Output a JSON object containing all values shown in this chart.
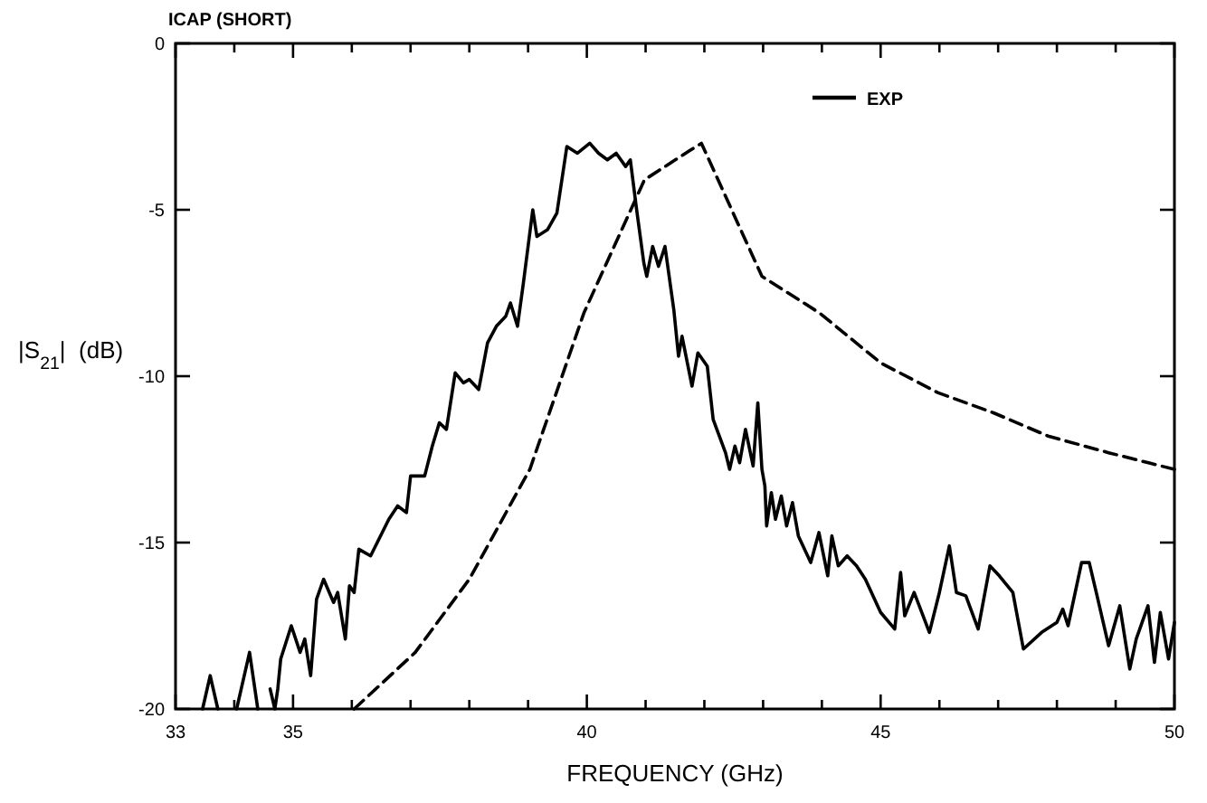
{
  "chart_data": {
    "type": "line",
    "title": "ICAP (SHORT)",
    "xlabel": "FREQUENCY (GHz)",
    "ylabel": "|S$_{21}$|  (dB)",
    "xlim": [
      33,
      50
    ],
    "ylim": [
      -20,
      0
    ],
    "xticks": [
      33,
      {
        "value": 34,
        "label": null
      },
      35,
      {
        "value": 36,
        "label": null
      },
      {
        "value": 37,
        "label": null
      },
      {
        "value": 38,
        "label": null
      },
      {
        "value": 39,
        "label": null
      },
      40,
      {
        "value": 41,
        "label": null
      },
      {
        "value": 42,
        "label": null
      },
      {
        "value": 43,
        "label": null
      },
      {
        "value": 44,
        "label": null
      },
      45,
      {
        "value": 46,
        "label": null
      },
      {
        "value": 47,
        "label": null
      },
      {
        "value": 48,
        "label": null
      },
      {
        "value": 49,
        "label": null
      },
      50
    ],
    "yticks": [
      0,
      -5,
      -10,
      -15,
      -20
    ],
    "grid": false,
    "legend": "top right",
    "marker": "none",
    "series": [
      {
        "name": "EXP",
        "color": "#000000",
        "line_style": "solid",
        "x": [
          33.46,
          33.59,
          33.72,
          33.9,
          34.04,
          34.26,
          34.4,
          34.5,
          34.61,
          34.69,
          34.74,
          34.79,
          34.97,
          35.12,
          35.2,
          35.3,
          35.4,
          35.52,
          35.69,
          35.76,
          35.89,
          35.96,
          36.04,
          36.12,
          36.32,
          36.63,
          36.78,
          36.93,
          37.0,
          37.24,
          37.37,
          37.49,
          37.61,
          37.76,
          37.9,
          38.0,
          38.16,
          38.31,
          38.46,
          38.62,
          38.7,
          38.82,
          38.92,
          39.08,
          39.15,
          39.33,
          39.49,
          39.66,
          39.84,
          40.05,
          40.2,
          40.35,
          40.5,
          40.66,
          40.74,
          40.84,
          40.97,
          41.02,
          41.12,
          41.22,
          41.33,
          41.48,
          41.56,
          41.62,
          41.79,
          41.89,
          42.05,
          42.15,
          42.36,
          42.43,
          42.52,
          42.6,
          42.7,
          42.83,
          42.91,
          42.98,
          43.03,
          43.06,
          43.14,
          43.21,
          43.31,
          43.4,
          43.5,
          43.6,
          43.81,
          43.95,
          44.1,
          44.17,
          44.28,
          44.43,
          44.59,
          44.74,
          45.0,
          45.24,
          45.34,
          45.41,
          45.57,
          45.83,
          46.0,
          46.17,
          46.29,
          46.45,
          46.66,
          46.86,
          47.02,
          47.25,
          47.43,
          47.74,
          48.0,
          48.1,
          48.19,
          48.42,
          48.55,
          48.67,
          48.88,
          49.07,
          49.24,
          49.35,
          49.55,
          49.66,
          49.76,
          49.9,
          50.0
        ],
        "values": [
          -20,
          -19.0,
          -20,
          null,
          -20,
          -18.3,
          -20,
          null,
          -19.4,
          -20,
          -19.4,
          -18.5,
          -17.5,
          -18.3,
          -17.9,
          -19.0,
          -16.7,
          -16.1,
          -16.8,
          -16.5,
          -17.9,
          -16.3,
          -16.5,
          -15.2,
          -15.4,
          -14.3,
          -13.9,
          -14.1,
          -13.0,
          -13.0,
          -12.1,
          -11.4,
          -11.6,
          -9.9,
          -10.2,
          -10.1,
          -10.4,
          -9.0,
          -8.5,
          -8.2,
          -7.8,
          -8.5,
          -7.2,
          -5.0,
          -5.8,
          -5.6,
          -5.1,
          -3.1,
          -3.3,
          -3.0,
          -3.3,
          -3.5,
          -3.3,
          -3.7,
          -3.5,
          -4.9,
          -6.6,
          -7.0,
          -6.1,
          -6.7,
          -6.1,
          -8.0,
          -9.4,
          -8.8,
          -10.3,
          -9.3,
          -9.7,
          -11.3,
          -12.3,
          -12.8,
          -12.1,
          -12.6,
          -11.6,
          -12.7,
          -10.8,
          -12.8,
          -13.3,
          -14.5,
          -13.5,
          -14.3,
          -13.6,
          -14.5,
          -13.8,
          -14.8,
          -15.6,
          -14.7,
          -16.0,
          -14.8,
          -15.7,
          -15.4,
          -15.7,
          -16.1,
          -17.1,
          -17.6,
          -15.9,
          -17.2,
          -16.5,
          -17.7,
          -16.5,
          -15.1,
          -16.5,
          -16.6,
          -17.6,
          -15.7,
          -16.0,
          -16.5,
          -18.2,
          -17.7,
          -17.4,
          -17.0,
          -17.5,
          -15.6,
          -15.6,
          -16.5,
          -18.1,
          -16.9,
          -18.8,
          -17.9,
          -16.9,
          -18.6,
          -17.1,
          -18.5,
          -17.4
        ]
      },
      {
        "color": "#000000",
        "line_style": "dashed",
        "x": [
          36.04,
          37.08,
          38.0,
          39.03,
          39.95,
          40.98,
          41.68,
          41.95,
          42.98,
          43.96,
          45.0,
          45.98,
          46.92,
          47.85,
          48.88,
          50.0
        ],
        "values": [
          -20,
          -18.3,
          -16.1,
          -12.8,
          -8.1,
          -4.1,
          -3.3,
          -3.0,
          -7.0,
          -8.1,
          -9.6,
          -10.5,
          -11.1,
          -11.8,
          -12.3,
          -12.8
        ]
      }
    ]
  }
}
